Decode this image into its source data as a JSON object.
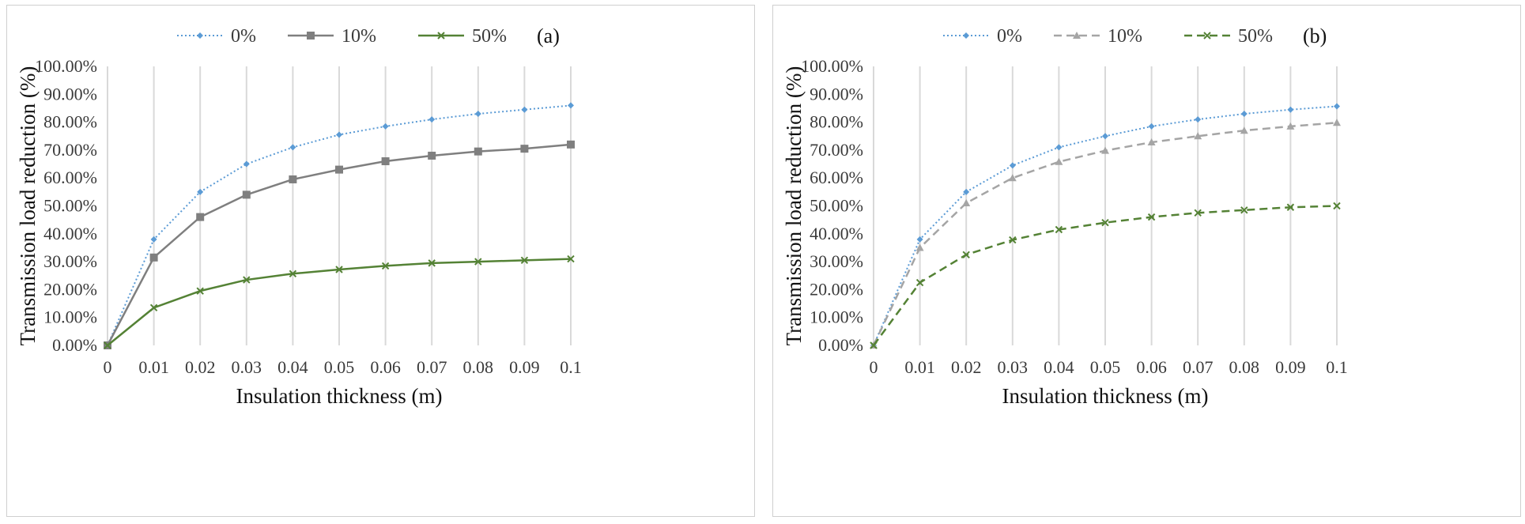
{
  "chart_data": [
    {
      "type": "line",
      "panel_label": "(a)",
      "xlabel": "Insulation thickness (m)",
      "ylabel": "Transmission load reduction (%)",
      "x": [
        0,
        0.01,
        0.02,
        0.03,
        0.04,
        0.05,
        0.06,
        0.07,
        0.08,
        0.09,
        0.1
      ],
      "x_tick_labels": [
        "0",
        "0.01",
        "0.02",
        "0.03",
        "0.04",
        "0.05",
        "0.06",
        "0.07",
        "0.08",
        "0.09",
        "0.1"
      ],
      "ylim": [
        0,
        100
      ],
      "y_tick_labels": [
        "0.00%",
        "10.00%",
        "20.00%",
        "30.00%",
        "40.00%",
        "50.00%",
        "60.00%",
        "70.00%",
        "80.00%",
        "90.00%",
        "100.00%"
      ],
      "grid": "vertical",
      "legend_position": "top",
      "series": [
        {
          "name": "0%",
          "color": "#5b9bd5",
          "line_style": "dotted",
          "marker": "diamond",
          "values": [
            0,
            38,
            55,
            65,
            71,
            75.5,
            78.5,
            81,
            83,
            84.5,
            86
          ]
        },
        {
          "name": "10%",
          "color": "#7f7f7f",
          "line_style": "solid",
          "marker": "square",
          "values": [
            0,
            31.5,
            46,
            54,
            59.5,
            63,
            66,
            68,
            69.5,
            70.5,
            72
          ]
        },
        {
          "name": "50%",
          "color": "#548235",
          "line_style": "solid",
          "marker": "x",
          "values": [
            0,
            13.5,
            19.5,
            23.5,
            25.7,
            27.2,
            28.5,
            29.5,
            30,
            30.5,
            31
          ]
        }
      ]
    },
    {
      "type": "line",
      "panel_label": "(b)",
      "xlabel": "Insulation thickness (m)",
      "ylabel": "Transmission load reduction (%)",
      "x": [
        0,
        0.01,
        0.02,
        0.03,
        0.04,
        0.05,
        0.06,
        0.07,
        0.08,
        0.09,
        0.1
      ],
      "x_tick_labels": [
        "0",
        "0.01",
        "0.02",
        "0.03",
        "0.04",
        "0.05",
        "0.06",
        "0.07",
        "0.08",
        "0.09",
        "0.1"
      ],
      "ylim": [
        0,
        100
      ],
      "y_tick_labels": [
        "0.00%",
        "10.00%",
        "20.00%",
        "30.00%",
        "40.00%",
        "50.00%",
        "60.00%",
        "70.00%",
        "80.00%",
        "90.00%",
        "100.00%"
      ],
      "grid": "vertical",
      "legend_position": "top",
      "series": [
        {
          "name": "0%",
          "color": "#5b9bd5",
          "line_style": "dotted",
          "marker": "diamond",
          "values": [
            0,
            38,
            55,
            64.5,
            71,
            75,
            78.5,
            81,
            83,
            84.5,
            85.7
          ]
        },
        {
          "name": "10%",
          "color": "#a5a5a5",
          "line_style": "dashed",
          "marker": "triangle",
          "values": [
            0,
            35,
            51,
            60,
            65.8,
            69.8,
            72.8,
            75,
            77,
            78.5,
            79.8
          ]
        },
        {
          "name": "50%",
          "color": "#548235",
          "line_style": "dashed",
          "marker": "x",
          "values": [
            0,
            22.5,
            32.5,
            37.8,
            41.5,
            44,
            46,
            47.5,
            48.5,
            49.5,
            50
          ]
        }
      ]
    }
  ]
}
